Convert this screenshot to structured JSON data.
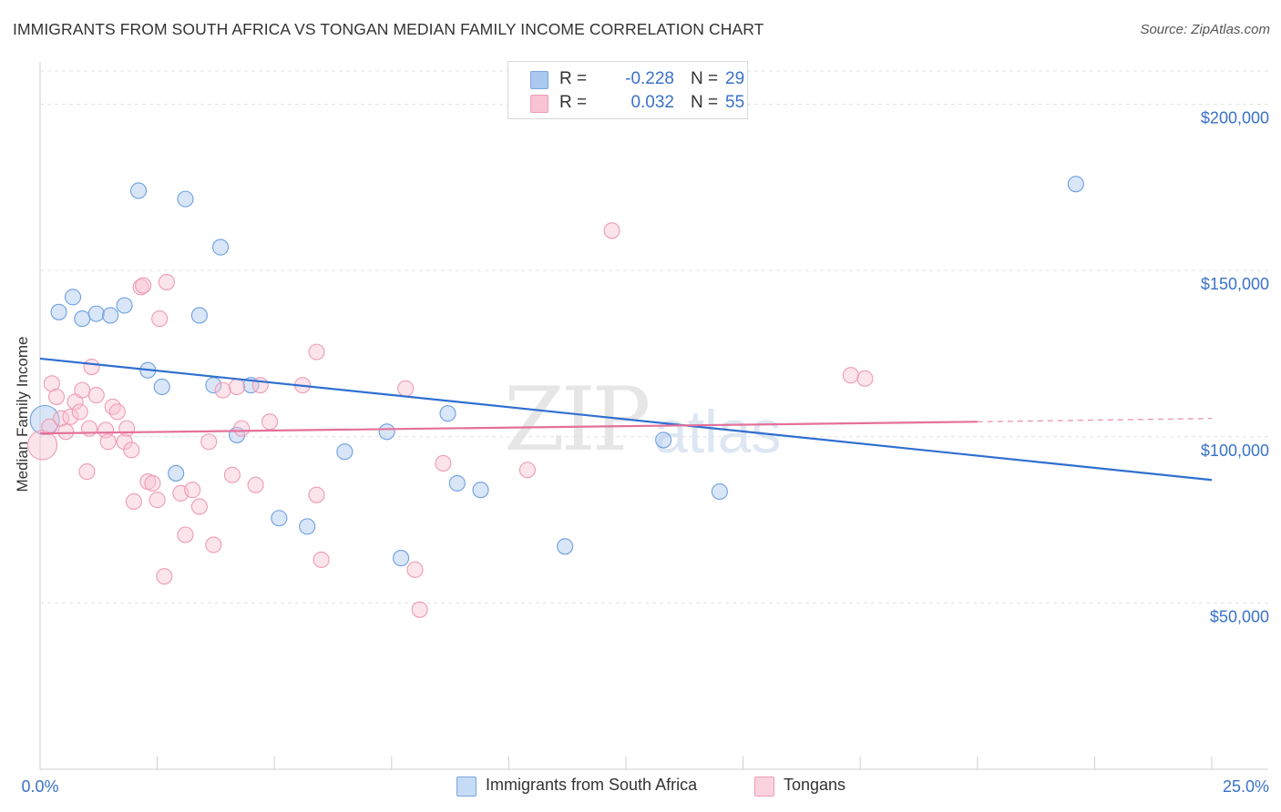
{
  "title": "IMMIGRANTS FROM SOUTH AFRICA VS TONGAN MEDIAN FAMILY INCOME CORRELATION CHART",
  "source": "Source: ZipAtlas.com",
  "watermark": {
    "zip": "ZIP",
    "atlas": "atlas"
  },
  "legend": {
    "rows": [
      {
        "r_label": "R =",
        "r_value": "-0.228",
        "n_label": "N =",
        "n_value": "29",
        "color": "#aac8f0",
        "border": "#7aa6df"
      },
      {
        "r_label": "R =",
        "r_value": "0.032",
        "n_label": "N =",
        "n_value": "55",
        "color": "#f8c3d3",
        "border": "#ee9bb5"
      }
    ]
  },
  "bottom_legend": [
    {
      "label": "Immigrants from South Africa",
      "color": "#c6dbf5",
      "border": "#7aa6df"
    },
    {
      "label": "Tongans",
      "color": "#fbd3de",
      "border": "#ee9bb5"
    }
  ],
  "chart_data": {
    "type": "scatter",
    "ylabel": "Median Family Income",
    "xlim": [
      0,
      25
    ],
    "ylim": [
      0,
      210000
    ],
    "x_tick_labels": [
      "0.0%",
      "25.0%"
    ],
    "y_ticks": [
      50000,
      100000,
      150000,
      200000
    ],
    "y_tick_labels": [
      "$50,000",
      "$100,000",
      "$150,000",
      "$200,000"
    ],
    "series": [
      {
        "name": "Immigrants from South Africa",
        "color": "#6d9fe0",
        "fill": "rgba(170,200,240,0.45)",
        "trend": {
          "x": [
            0,
            25
          ],
          "y": [
            123500,
            87000
          ],
          "color": "#2f6fd0"
        },
        "points": [
          [
            0.1,
            105000
          ],
          [
            0.4,
            137500
          ],
          [
            0.7,
            142000
          ],
          [
            0.9,
            135500
          ],
          [
            1.2,
            137000
          ],
          [
            1.5,
            136500
          ],
          [
            1.8,
            139500
          ],
          [
            2.1,
            174000
          ],
          [
            2.3,
            120000
          ],
          [
            2.6,
            115000
          ],
          [
            2.9,
            89000
          ],
          [
            3.1,
            171500
          ],
          [
            3.4,
            136500
          ],
          [
            3.7,
            115500
          ],
          [
            3.85,
            157000
          ],
          [
            4.2,
            100500
          ],
          [
            4.5,
            115500
          ],
          [
            5.1,
            75500
          ],
          [
            5.7,
            73000
          ],
          [
            6.5,
            95500
          ],
          [
            7.4,
            101500
          ],
          [
            7.7,
            63500
          ],
          [
            8.7,
            107000
          ],
          [
            8.9,
            86000
          ],
          [
            9.4,
            84000
          ],
          [
            11.2,
            67000
          ],
          [
            13.3,
            99000
          ],
          [
            14.5,
            83500
          ],
          [
            22.1,
            176000
          ]
        ]
      },
      {
        "name": "Tongans",
        "color": "#ee9bb5",
        "fill": "rgba(248,195,211,0.45)",
        "trend": {
          "x": [
            0,
            20
          ],
          "y": [
            101000,
            104500
          ],
          "color": "#e4709a",
          "dash_x": [
            20,
            25
          ],
          "dash_y": [
            104500,
            105500
          ]
        },
        "points": [
          [
            0.05,
            97500
          ],
          [
            0.2,
            103000
          ],
          [
            0.25,
            116000
          ],
          [
            0.35,
            112000
          ],
          [
            0.45,
            105500
          ],
          [
            0.55,
            101500
          ],
          [
            0.65,
            106000
          ],
          [
            0.75,
            110500
          ],
          [
            0.85,
            107500
          ],
          [
            0.9,
            114000
          ],
          [
            1.0,
            89500
          ],
          [
            1.05,
            102500
          ],
          [
            1.1,
            121000
          ],
          [
            1.2,
            112500
          ],
          [
            1.4,
            102000
          ],
          [
            1.45,
            98500
          ],
          [
            1.55,
            109000
          ],
          [
            1.65,
            107500
          ],
          [
            1.8,
            98500
          ],
          [
            1.85,
            102500
          ],
          [
            1.95,
            96000
          ],
          [
            2.0,
            80500
          ],
          [
            2.15,
            145000
          ],
          [
            2.2,
            145500
          ],
          [
            2.3,
            86500
          ],
          [
            2.4,
            86000
          ],
          [
            2.5,
            81000
          ],
          [
            2.55,
            135500
          ],
          [
            2.65,
            58000
          ],
          [
            2.7,
            146500
          ],
          [
            3.0,
            83000
          ],
          [
            3.1,
            70500
          ],
          [
            3.25,
            84000
          ],
          [
            3.4,
            79000
          ],
          [
            3.6,
            98500
          ],
          [
            3.7,
            67500
          ],
          [
            3.9,
            114000
          ],
          [
            4.1,
            88500
          ],
          [
            4.2,
            115000
          ],
          [
            4.3,
            102500
          ],
          [
            4.6,
            85500
          ],
          [
            4.7,
            115500
          ],
          [
            4.9,
            104500
          ],
          [
            5.6,
            115500
          ],
          [
            5.9,
            125500
          ],
          [
            5.9,
            82500
          ],
          [
            6.0,
            63000
          ],
          [
            7.8,
            114500
          ],
          [
            8.0,
            60000
          ],
          [
            8.1,
            48000
          ],
          [
            8.6,
            92000
          ],
          [
            10.4,
            90000
          ],
          [
            12.2,
            162000
          ],
          [
            17.3,
            118500
          ],
          [
            17.6,
            117500
          ]
        ]
      }
    ]
  }
}
